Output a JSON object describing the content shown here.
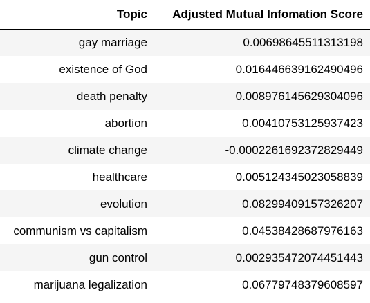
{
  "table": {
    "columns": [
      "Topic",
      "Adjusted Mutual Infomation Score"
    ],
    "rows": [
      {
        "topic": "gay marriage",
        "score": "0.00698645511313198"
      },
      {
        "topic": "existence of God",
        "score": "0.016446639162490496"
      },
      {
        "topic": "death penalty",
        "score": "0.008976145629304096"
      },
      {
        "topic": "abortion",
        "score": "0.00410753125937423"
      },
      {
        "topic": "climate change",
        "score": "-0.0002261692372829449"
      },
      {
        "topic": "healthcare",
        "score": "0.005124345023058839"
      },
      {
        "topic": "evolution",
        "score": "0.08299409157326207"
      },
      {
        "topic": "communism vs capitalism",
        "score": "0.04538428687976163"
      },
      {
        "topic": "gun control",
        "score": "0.002935472074451443"
      },
      {
        "topic": "marijuana legalization",
        "score": "0.06779748379608597"
      }
    ]
  },
  "colors": {
    "stripe": "#f5f5f5",
    "header_rule": "#000000",
    "text": "#000000"
  }
}
